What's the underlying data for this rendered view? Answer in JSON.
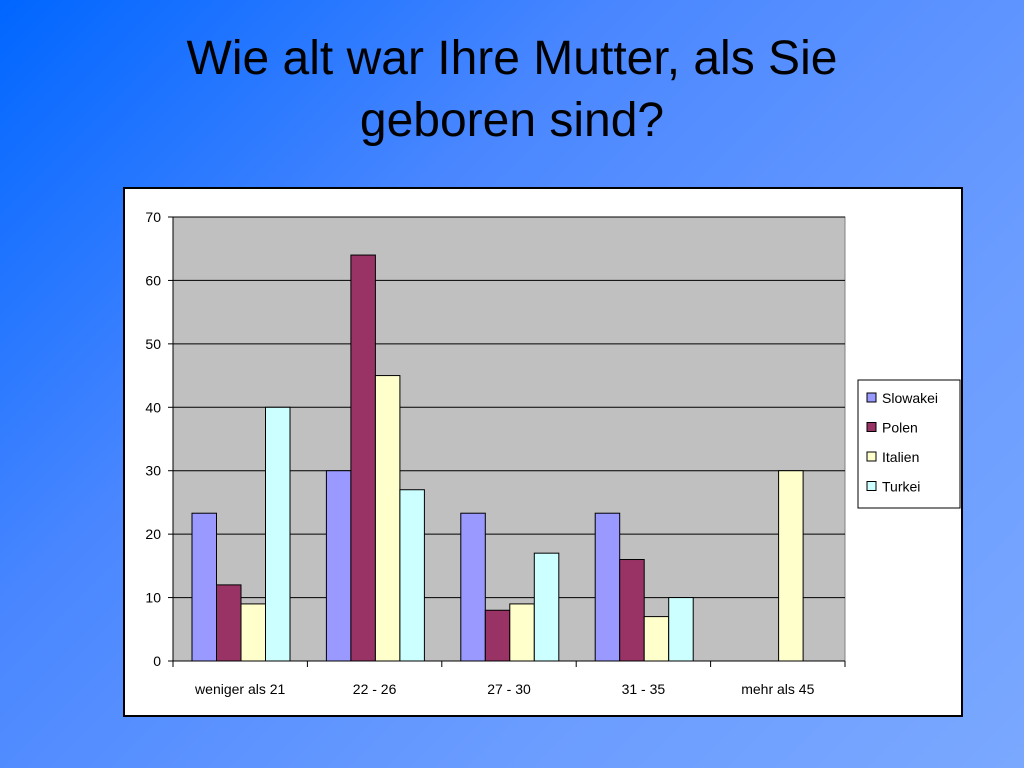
{
  "slide": {
    "title_line1": "Wie alt war Ihre Mutter, als Sie",
    "title_line2": "geboren sind?"
  },
  "colors": {
    "plot_background": "#c0c0c0",
    "Slowakei": "#9999ff",
    "Polen": "#993366",
    "Italien": "#ffffcc",
    "Turkei": "#ccffff"
  },
  "chart_data": {
    "type": "bar",
    "title": "",
    "xlabel": "",
    "ylabel": "",
    "categories": [
      "weniger als 21",
      "22 - 26",
      "27 - 30",
      "31 - 35",
      "mehr als 45"
    ],
    "series": [
      {
        "name": "Slowakei",
        "values": [
          23.3,
          30,
          23.3,
          23.3,
          0
        ]
      },
      {
        "name": "Polen",
        "values": [
          12,
          64,
          8,
          16,
          0
        ]
      },
      {
        "name": "Italien",
        "values": [
          9,
          45,
          9,
          7,
          30
        ]
      },
      {
        "name": "Turkei",
        "values": [
          40,
          27,
          17,
          10,
          0
        ]
      }
    ],
    "ylim": [
      0,
      70
    ],
    "yticks": [
      0,
      10,
      20,
      30,
      40,
      50,
      60,
      70
    ],
    "grid": true,
    "legend": "right"
  }
}
